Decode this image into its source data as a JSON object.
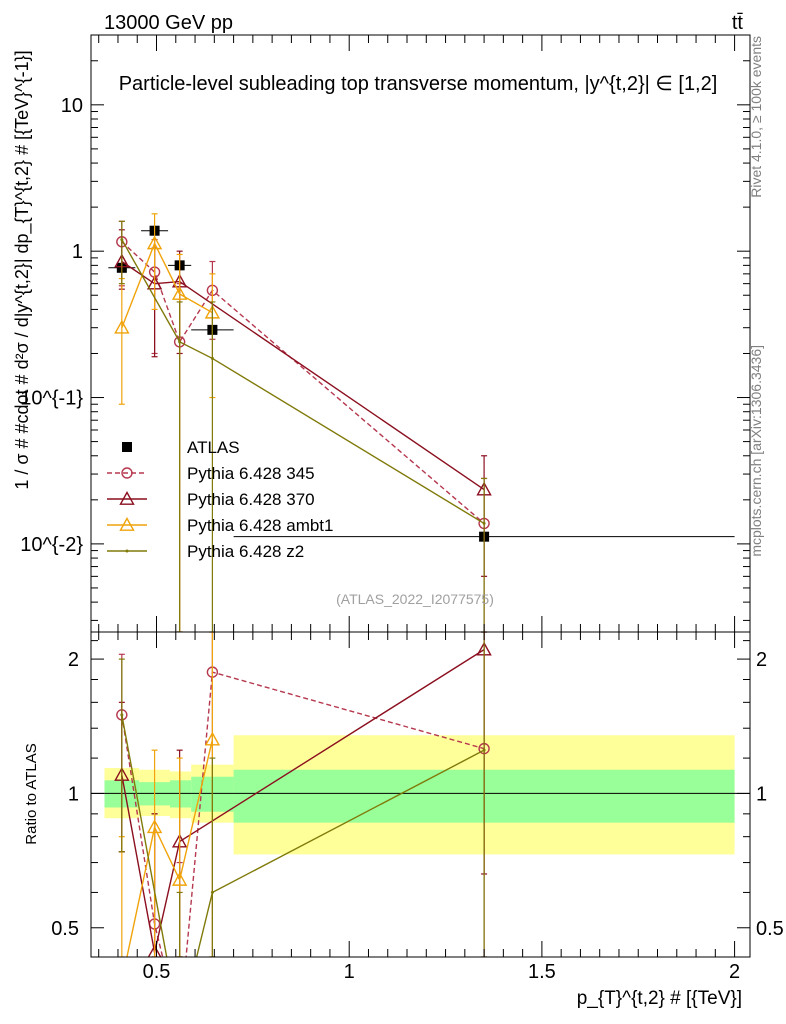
{
  "header": {
    "left": "13000 GeV pp",
    "right": "tt̄"
  },
  "side": {
    "rivet": "Rivet 4.1.0, ≥ 100k events",
    "mcplots": "mcplots.cern.ch [arXiv:1306.3436]"
  },
  "colors": {
    "atlas": "#000000",
    "p345": "#b5384e",
    "p370": "#8b0f1f",
    "ambt1": "#f0a30a",
    "z2": "#807a0a",
    "band_inner": "#99ff99",
    "band_outer": "#ffff99"
  },
  "chart_data": [
    {
      "type": "scatter",
      "panel": "main",
      "title": "Particle-level subleading top transverse momentum, |y^{t,2}| ∈ [1,2]",
      "xlabel": "p_{T}^{t,2} # [{TeV}]",
      "ylabel": "1 / σ # #cdot # d²σ / d|y^{t,2}| dp_{T}^{t,2} # [{TeV}^{-1}]",
      "xlim": [
        0.33,
        2.04
      ],
      "ylim": [
        0.0025,
        30
      ],
      "yscale": "log",
      "yticks": [
        0.01,
        0.1,
        1,
        10
      ],
      "yticklabels": [
        "10^{-2}",
        "10^{-1}",
        "1",
        "10"
      ],
      "watermark": "(ATLAS_2022_I2077575)",
      "legend_position": "middle-left",
      "series": [
        {
          "name": "ATLAS",
          "style": "square",
          "color": "#000000",
          "dashed": false,
          "x": [
            0.41,
            0.495,
            0.56,
            0.645,
            1.35
          ],
          "y": [
            0.77,
            1.38,
            0.8,
            0.29,
            0.0112
          ],
          "xerr": [
            0.035,
            0.035,
            0.03,
            0.055,
            0.65
          ]
        },
        {
          "name": "Pythia 6.428 345",
          "style": "circle",
          "color": "#b5384e",
          "dashed": true,
          "x": [
            0.41,
            0.495,
            0.56,
            0.645,
            1.35
          ],
          "y": [
            1.16,
            0.72,
            0.24,
            0.54,
            0.0138
          ],
          "ylo": [
            0.58,
            0.2,
            0.001,
            0.25,
            0.001
          ],
          "yhi": [
            1.6,
            1.2,
            0.6,
            0.85,
            0.028
          ]
        },
        {
          "name": "Pythia 6.428 370",
          "style": "triangle",
          "color": "#8b0f1f",
          "dashed": false,
          "x": [
            0.41,
            0.495,
            0.56,
            0.645,
            1.35
          ],
          "y": [
            0.85,
            0.6,
            0.62,
            null,
            0.0235
          ],
          "ylo": [
            0.55,
            0.19,
            0.2,
            null,
            0.006
          ],
          "yhi": [
            1.4,
            1.05,
            1.0,
            null,
            0.04
          ]
        },
        {
          "name": "Pythia 6.428 ambt1",
          "style": "triangle",
          "color": "#f0a30a",
          "dashed": false,
          "x": [
            0.41,
            0.495,
            0.56,
            0.645,
            1.35
          ],
          "y": [
            0.3,
            1.13,
            0.51,
            0.38,
            null
          ],
          "ylo": [
            0.09,
            0.4,
            0.001,
            0.1,
            null
          ],
          "yhi": [
            0.65,
            1.8,
            0.95,
            0.7,
            null
          ]
        },
        {
          "name": "Pythia 6.428 z2",
          "style": "dot",
          "color": "#807a0a",
          "dashed": false,
          "x": [
            0.41,
            0.56,
            0.645,
            1.35
          ],
          "y": [
            1.2,
            0.24,
            0.185,
            0.0138
          ],
          "ylo": [
            0.6,
            0.001,
            0.001,
            0.001
          ],
          "yhi": [
            1.6,
            0.45,
            0.45,
            0.028
          ]
        }
      ]
    },
    {
      "type": "line",
      "panel": "ratio",
      "ylabel": "Ratio to ATLAS",
      "xlabel": "p_{T}^{t,2} # [{TeV}]",
      "xlim": [
        0.33,
        2.04
      ],
      "ylim": [
        0.43,
        2.3
      ],
      "yscale": "log",
      "xticks": [
        0.5,
        1,
        1.5,
        2
      ],
      "xticklabels": [
        "0.5",
        "1",
        "1.5",
        "2"
      ],
      "yticks": [
        0.5,
        1,
        2
      ],
      "yticklabels": [
        "0.5",
        "1",
        "2"
      ],
      "bands": [
        {
          "x0": 0.365,
          "x1": 0.455,
          "inner": [
            0.93,
            1.07
          ],
          "outer": [
            0.88,
            1.14
          ]
        },
        {
          "x0": 0.455,
          "x1": 0.535,
          "inner": [
            0.94,
            1.06
          ],
          "outer": [
            0.89,
            1.13
          ]
        },
        {
          "x0": 0.535,
          "x1": 0.59,
          "inner": [
            0.93,
            1.07
          ],
          "outer": [
            0.88,
            1.12
          ]
        },
        {
          "x0": 0.59,
          "x1": 0.7,
          "inner": [
            0.91,
            1.09
          ],
          "outer": [
            0.86,
            1.16
          ]
        },
        {
          "x0": 0.7,
          "x1": 2.0,
          "inner": [
            0.86,
            1.13
          ],
          "outer": [
            0.73,
            1.35
          ]
        }
      ],
      "series": [
        {
          "name": "Pythia 6.428 345",
          "style": "circle",
          "color": "#b5384e",
          "dashed": true,
          "x": [
            0.41,
            0.495,
            0.56,
            0.645,
            1.35
          ],
          "y": [
            1.5,
            0.51,
            0.3,
            1.87,
            1.26
          ],
          "ylo": [
            0.74,
            0.15,
            0.01,
            0.3,
            0.3
          ],
          "yhi": [
            2.05,
            0.9,
            0.7,
            2.3,
            2.3
          ]
        },
        {
          "name": "Pythia 6.428 370",
          "style": "triangle",
          "color": "#8b0f1f",
          "dashed": false,
          "x": [
            0.41,
            0.495,
            0.56,
            0.645,
            1.35
          ],
          "y": [
            1.1,
            0.44,
            0.78,
            null,
            2.1
          ],
          "ylo": [
            0.74,
            0.15,
            0.3,
            null,
            0.66
          ],
          "yhi": [
            1.6,
            0.9,
            1.25,
            null,
            2.3
          ]
        },
        {
          "name": "Pythia 6.428 ambt1",
          "style": "triangle",
          "color": "#f0a30a",
          "dashed": false,
          "x": [
            0.41,
            0.495,
            0.56,
            0.645,
            1.35
          ],
          "y": [
            0.38,
            0.84,
            0.64,
            1.32,
            null
          ],
          "ylo": [
            0.12,
            0.3,
            0.01,
            0.4,
            null
          ],
          "yhi": [
            0.8,
            1.25,
            1.2,
            2.3,
            null
          ]
        },
        {
          "name": "Pythia 6.428 z2",
          "style": "dot",
          "color": "#807a0a",
          "dashed": false,
          "x": [
            0.41,
            0.56,
            0.645,
            1.35
          ],
          "y": [
            1.5,
            0.3,
            0.6,
            1.25
          ],
          "ylo": [
            0.74,
            0.01,
            0.01,
            0.01
          ],
          "yhi": [
            2.0,
            0.6,
            1.2,
            2.3
          ]
        }
      ]
    }
  ]
}
